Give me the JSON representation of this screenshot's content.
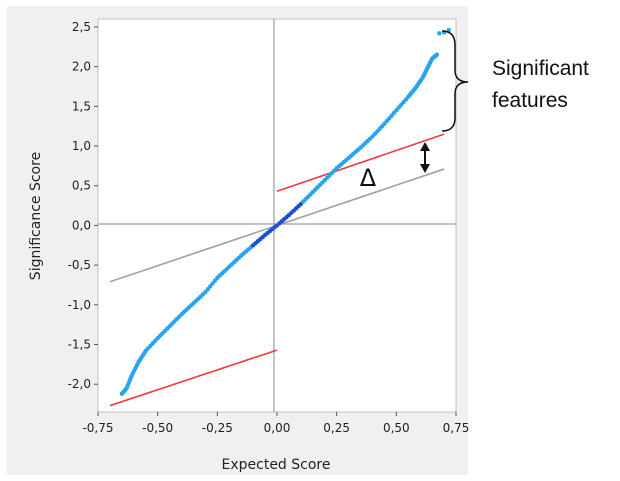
{
  "chart_data": {
    "type": "scatter",
    "xlabel": "Expected Score",
    "ylabel": "Significance Score",
    "xlim": [
      -0.75,
      0.75
    ],
    "ylim": [
      -2.35,
      2.6
    ],
    "x_ticks": [
      "-0,75",
      "-0,50",
      "-0,25",
      "0,00",
      "0,25",
      "0,50",
      "0,75"
    ],
    "x_tick_values": [
      -0.75,
      -0.5,
      -0.25,
      0.0,
      0.25,
      0.5,
      0.75
    ],
    "y_ticks": [
      "2,5",
      "2,0",
      "1,5",
      "1,0",
      "0,5",
      "0,0",
      "-0,5",
      "-1,0",
      "-1,5",
      "-2,0"
    ],
    "y_tick_values": [
      2.5,
      2.0,
      1.5,
      1.0,
      0.5,
      0.0,
      -0.5,
      -1.0,
      -1.5,
      -2.0
    ],
    "series": [
      {
        "kind": "points",
        "color": "#29a3f0",
        "points": [
          [
            -0.65,
            -2.12
          ],
          [
            -0.63,
            -2.05
          ],
          [
            -0.61,
            -1.9
          ],
          [
            -0.58,
            -1.72
          ],
          [
            -0.55,
            -1.58
          ],
          [
            -0.5,
            -1.42
          ],
          [
            -0.45,
            -1.27
          ],
          [
            -0.4,
            -1.12
          ],
          [
            -0.35,
            -0.98
          ],
          [
            -0.3,
            -0.84
          ],
          [
            -0.25,
            -0.66
          ],
          [
            -0.2,
            -0.52
          ],
          [
            -0.15,
            -0.38
          ],
          [
            -0.1,
            -0.25
          ],
          [
            -0.05,
            -0.12
          ],
          [
            0.0,
            0.0
          ],
          [
            0.05,
            0.13
          ],
          [
            0.1,
            0.27
          ],
          [
            0.15,
            0.42
          ],
          [
            0.2,
            0.57
          ],
          [
            0.25,
            0.72
          ],
          [
            0.3,
            0.85
          ],
          [
            0.35,
            0.98
          ],
          [
            0.4,
            1.12
          ],
          [
            0.45,
            1.28
          ],
          [
            0.5,
            1.45
          ],
          [
            0.55,
            1.62
          ],
          [
            0.58,
            1.73
          ],
          [
            0.61,
            1.86
          ],
          [
            0.63,
            1.98
          ],
          [
            0.65,
            2.1
          ],
          [
            0.67,
            2.15
          ],
          [
            0.68,
            2.42
          ],
          [
            0.7,
            2.43
          ],
          [
            0.72,
            2.46
          ]
        ]
      },
      {
        "kind": "line",
        "color": "#a0a0a0",
        "points": [
          [
            -0.7,
            -0.71
          ],
          [
            0.7,
            0.71
          ]
        ]
      },
      {
        "kind": "line",
        "color": "#ee3a3a",
        "points": [
          [
            0.0,
            0.43
          ],
          [
            0.7,
            1.15
          ]
        ]
      },
      {
        "kind": "line",
        "color": "#ee3a3a",
        "points": [
          [
            -0.7,
            -2.27
          ],
          [
            0.0,
            -1.57
          ]
        ]
      }
    ],
    "annotations": {
      "brace_label": [
        "Significant",
        "features"
      ],
      "delta_label": "Δ"
    }
  }
}
